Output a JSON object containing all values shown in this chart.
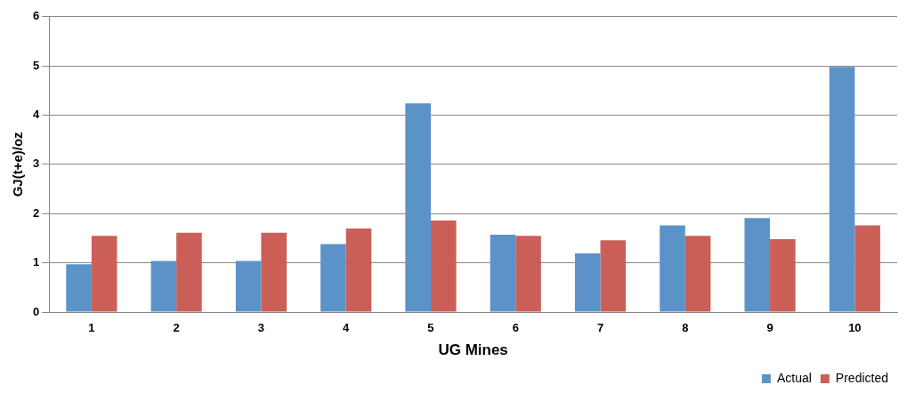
{
  "chart_data": {
    "type": "bar",
    "xlabel": "UG Mines",
    "ylabel": "GJ(t+e)/oz",
    "categories": [
      "1",
      "2",
      "3",
      "4",
      "5",
      "6",
      "7",
      "8",
      "9",
      "10"
    ],
    "series": [
      {
        "name": "Actual",
        "color": "#5b93c9",
        "values": [
          0.97,
          1.04,
          1.04,
          1.38,
          4.24,
          1.57,
          1.19,
          1.76,
          1.91,
          4.98
        ]
      },
      {
        "name": "Predicted",
        "color": "#cb5f57",
        "values": [
          1.55,
          1.61,
          1.61,
          1.7,
          1.86,
          1.55,
          1.46,
          1.55,
          1.48,
          1.76
        ]
      }
    ],
    "ylim": [
      0,
      6
    ],
    "yticks": [
      0,
      1,
      2,
      3,
      4,
      5,
      6
    ],
    "grid": "y",
    "legend": "bottom right"
  }
}
